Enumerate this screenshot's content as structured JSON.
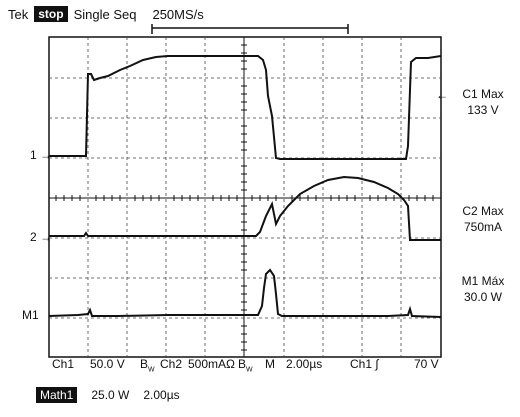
{
  "header": {
    "brand": "Tek",
    "state": "stop",
    "mode": "Single Seq",
    "sample_rate": "250MS/s"
  },
  "markers": {
    "ch1": "1",
    "ch2": "2",
    "m1": "M1"
  },
  "readouts": {
    "c1_title": "C1 Max",
    "c1_value": "133 V",
    "c2_title": "C2 Max",
    "c2_value": "750mA",
    "m1_title": "M1 Máx",
    "m1_value": "30.0 W"
  },
  "bottom": {
    "ch1_label": "Ch1",
    "ch1_scale": "50.0 V",
    "bw1": "B",
    "bw1_sub": "W",
    "ch2_label": "Ch2",
    "ch2_scale": "500mAΩ",
    "bw2": "B",
    "bw2_sub": "W",
    "m_label": "M",
    "timebase": "2.00µs",
    "trigger_source": "Ch1",
    "trigger_slope": "∫",
    "trigger_level": "70 V",
    "math_label": "Math1",
    "math_scale": "25.0 W",
    "math_timebase": "2.00µs"
  }
}
